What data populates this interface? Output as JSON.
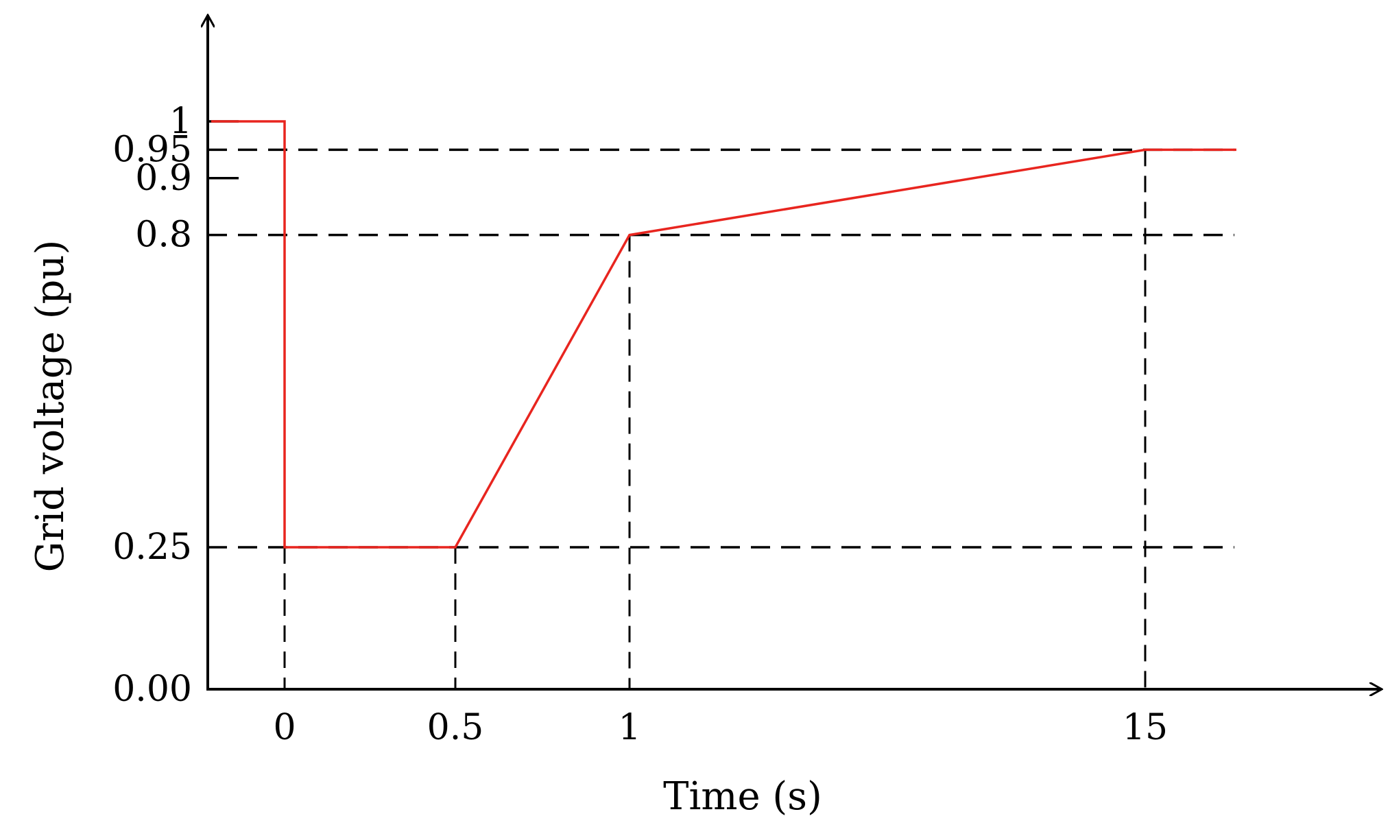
{
  "chart_data": {
    "type": "line",
    "title": "",
    "xlabel": "Time (s)",
    "ylabel": "Grid voltage (pu)",
    "x_tick_labels": [
      "0",
      "0.5",
      "1",
      "15"
    ],
    "y_tick_labels": [
      "0.00",
      "0.25",
      "0.8",
      "0.9",
      "0.95",
      "1"
    ],
    "x_ticks": [
      0,
      0.5,
      1,
      15
    ],
    "y_ticks": [
      0.0,
      0.25,
      0.8,
      0.9,
      0.95,
      1.0
    ],
    "x_scale": "non-uniform (breakpoints only)",
    "grid": false,
    "reference_lines": {
      "horizontal": [
        0.25,
        0.8,
        0.95
      ],
      "vertical": [
        0,
        0.5,
        1,
        15
      ],
      "style": "dashed"
    },
    "series": [
      {
        "color": "#e8251f",
        "points": [
          {
            "x": "start",
            "y": 1.0
          },
          {
            "x": 0,
            "y": 1.0
          },
          {
            "x": 0,
            "y": 0.25
          },
          {
            "x": 0.5,
            "y": 0.25
          },
          {
            "x": 1,
            "y": 0.8
          },
          {
            "x": 15,
            "y": 0.95
          },
          {
            "x": "end",
            "y": 0.95
          }
        ]
      }
    ],
    "colors": {
      "axis": "#000000",
      "series": "#e8251f",
      "reference": "#000000"
    }
  }
}
